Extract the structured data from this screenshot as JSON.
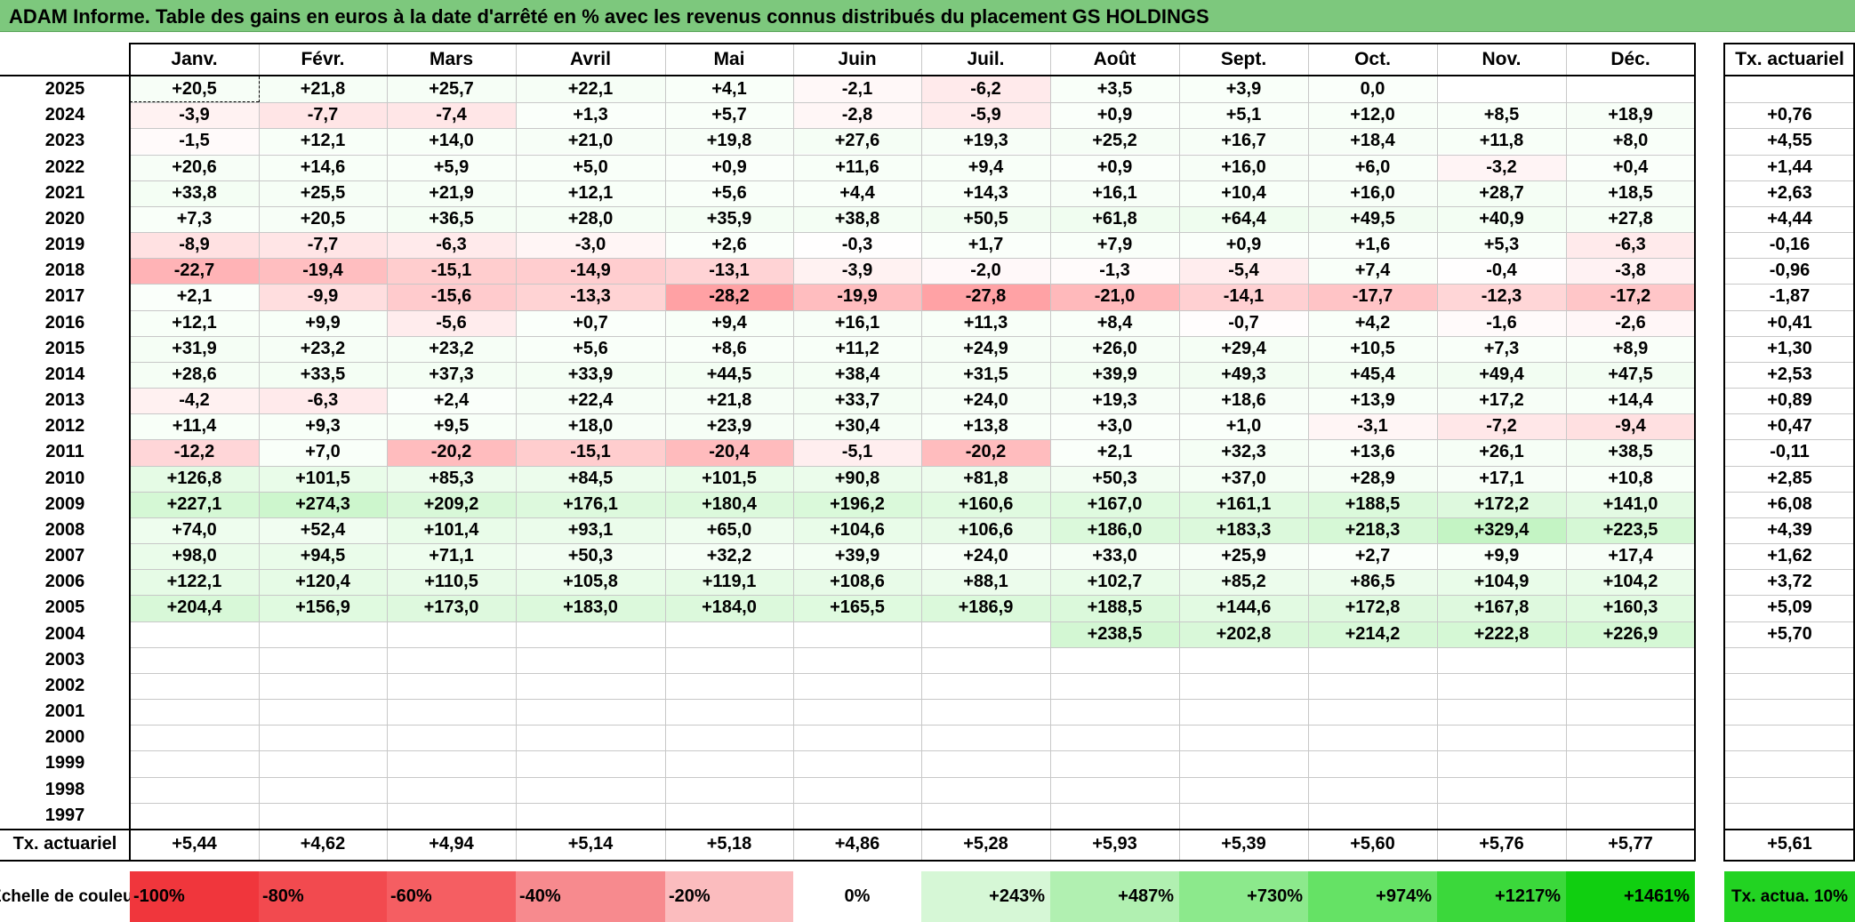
{
  "title": "ADAM Informe. Table des gains en euros à la date d'arrêté en % avec les revenus connus distribués du placement GS HOLDINGS",
  "chart_data": {
    "type": "table",
    "columns": [
      "Janv.",
      "Févr.",
      "Mars",
      "Avril",
      "Mai",
      "Juin",
      "Juil.",
      "Août",
      "Sept.",
      "Oct.",
      "Nov.",
      "Déc."
    ],
    "rate_header": "Tx. actuariel",
    "rows": [
      {
        "year": "2025",
        "values": [
          "+20,5",
          "+21,8",
          "+25,7",
          "+22,1",
          "+4,1",
          "-2,1",
          "-6,2",
          "+3,5",
          "+3,9",
          "0,0",
          "",
          ""
        ],
        "rate": ""
      },
      {
        "year": "2024",
        "values": [
          "-3,9",
          "-7,7",
          "-7,4",
          "+1,3",
          "+5,7",
          "-2,8",
          "-5,9",
          "+0,9",
          "+5,1",
          "+12,0",
          "+8,5",
          "+18,9"
        ],
        "rate": "+0,76"
      },
      {
        "year": "2023",
        "values": [
          "-1,5",
          "+12,1",
          "+14,0",
          "+21,0",
          "+19,8",
          "+27,6",
          "+19,3",
          "+25,2",
          "+16,7",
          "+18,4",
          "+11,8",
          "+8,0"
        ],
        "rate": "+4,55"
      },
      {
        "year": "2022",
        "values": [
          "+20,6",
          "+14,6",
          "+5,9",
          "+5,0",
          "+0,9",
          "+11,6",
          "+9,4",
          "+0,9",
          "+16,0",
          "+6,0",
          "-3,2",
          "+0,4"
        ],
        "rate": "+1,44"
      },
      {
        "year": "2021",
        "values": [
          "+33,8",
          "+25,5",
          "+21,9",
          "+12,1",
          "+5,6",
          "+4,4",
          "+14,3",
          "+16,1",
          "+10,4",
          "+16,0",
          "+28,7",
          "+18,5"
        ],
        "rate": "+2,63"
      },
      {
        "year": "2020",
        "values": [
          "+7,3",
          "+20,5",
          "+36,5",
          "+28,0",
          "+35,9",
          "+38,8",
          "+50,5",
          "+61,8",
          "+64,4",
          "+49,5",
          "+40,9",
          "+27,8"
        ],
        "rate": "+4,44"
      },
      {
        "year": "2019",
        "values": [
          "-8,9",
          "-7,7",
          "-6,3",
          "-3,0",
          "+2,6",
          "-0,3",
          "+1,7",
          "+7,9",
          "+0,9",
          "+1,6",
          "+5,3",
          "-6,3"
        ],
        "rate": "-0,16"
      },
      {
        "year": "2018",
        "values": [
          "-22,7",
          "-19,4",
          "-15,1",
          "-14,9",
          "-13,1",
          "-3,9",
          "-2,0",
          "-1,3",
          "-5,4",
          "+7,4",
          "-0,4",
          "-3,8"
        ],
        "rate": "-0,96"
      },
      {
        "year": "2017",
        "values": [
          "+2,1",
          "-9,9",
          "-15,6",
          "-13,3",
          "-28,2",
          "-19,9",
          "-27,8",
          "-21,0",
          "-14,1",
          "-17,7",
          "-12,3",
          "-17,2"
        ],
        "rate": "-1,87"
      },
      {
        "year": "2016",
        "values": [
          "+12,1",
          "+9,9",
          "-5,6",
          "+0,7",
          "+9,4",
          "+16,1",
          "+11,3",
          "+8,4",
          "-0,7",
          "+4,2",
          "-1,6",
          "-2,6"
        ],
        "rate": "+0,41"
      },
      {
        "year": "2015",
        "values": [
          "+31,9",
          "+23,2",
          "+23,2",
          "+5,6",
          "+8,6",
          "+11,2",
          "+24,9",
          "+26,0",
          "+29,4",
          "+10,5",
          "+7,3",
          "+8,9"
        ],
        "rate": "+1,30"
      },
      {
        "year": "2014",
        "values": [
          "+28,6",
          "+33,5",
          "+37,3",
          "+33,9",
          "+44,5",
          "+38,4",
          "+31,5",
          "+39,9",
          "+49,3",
          "+45,4",
          "+49,4",
          "+47,5"
        ],
        "rate": "+2,53"
      },
      {
        "year": "2013",
        "values": [
          "-4,2",
          "-6,3",
          "+2,4",
          "+22,4",
          "+21,8",
          "+33,7",
          "+24,0",
          "+19,3",
          "+18,6",
          "+13,9",
          "+17,2",
          "+14,4"
        ],
        "rate": "+0,89"
      },
      {
        "year": "2012",
        "values": [
          "+11,4",
          "+9,3",
          "+9,5",
          "+18,0",
          "+23,9",
          "+30,4",
          "+13,8",
          "+3,0",
          "+1,0",
          "-3,1",
          "-7,2",
          "-9,4"
        ],
        "rate": "+0,47"
      },
      {
        "year": "2011",
        "values": [
          "-12,2",
          "+7,0",
          "-20,2",
          "-15,1",
          "-20,4",
          "-5,1",
          "-20,2",
          "+2,1",
          "+32,3",
          "+13,6",
          "+26,1",
          "+38,5"
        ],
        "rate": "-0,11"
      },
      {
        "year": "2010",
        "values": [
          "+126,8",
          "+101,5",
          "+85,3",
          "+84,5",
          "+101,5",
          "+90,8",
          "+81,8",
          "+50,3",
          "+37,0",
          "+28,9",
          "+17,1",
          "+10,8"
        ],
        "rate": "+2,85"
      },
      {
        "year": "2009",
        "values": [
          "+227,1",
          "+274,3",
          "+209,2",
          "+176,1",
          "+180,4",
          "+196,2",
          "+160,6",
          "+167,0",
          "+161,1",
          "+188,5",
          "+172,2",
          "+141,0"
        ],
        "rate": "+6,08"
      },
      {
        "year": "2008",
        "values": [
          "+74,0",
          "+52,4",
          "+101,4",
          "+93,1",
          "+65,0",
          "+104,6",
          "+106,6",
          "+186,0",
          "+183,3",
          "+218,3",
          "+329,4",
          "+223,5"
        ],
        "rate": "+4,39"
      },
      {
        "year": "2007",
        "values": [
          "+98,0",
          "+94,5",
          "+71,1",
          "+50,3",
          "+32,2",
          "+39,9",
          "+24,0",
          "+33,0",
          "+25,9",
          "+2,7",
          "+9,9",
          "+17,4"
        ],
        "rate": "+1,62"
      },
      {
        "year": "2006",
        "values": [
          "+122,1",
          "+120,4",
          "+110,5",
          "+105,8",
          "+119,1",
          "+108,6",
          "+88,1",
          "+102,7",
          "+85,2",
          "+86,5",
          "+104,9",
          "+104,2"
        ],
        "rate": "+3,72"
      },
      {
        "year": "2005",
        "values": [
          "+204,4",
          "+156,9",
          "+173,0",
          "+183,0",
          "+184,0",
          "+165,5",
          "+186,9",
          "+188,5",
          "+144,6",
          "+172,8",
          "+167,8",
          "+160,3"
        ],
        "rate": "+5,09"
      },
      {
        "year": "2004",
        "values": [
          "",
          "",
          "",
          "",
          "",
          "",
          "",
          "+238,5",
          "+202,8",
          "+214,2",
          "+222,8",
          "+226,9"
        ],
        "rate": "+5,70"
      },
      {
        "year": "2003",
        "values": [
          "",
          "",
          "",
          "",
          "",
          "",
          "",
          "",
          "",
          "",
          "",
          ""
        ],
        "rate": ""
      },
      {
        "year": "2002",
        "values": [
          "",
          "",
          "",
          "",
          "",
          "",
          "",
          "",
          "",
          "",
          "",
          ""
        ],
        "rate": ""
      },
      {
        "year": "2001",
        "values": [
          "",
          "",
          "",
          "",
          "",
          "",
          "",
          "",
          "",
          "",
          "",
          ""
        ],
        "rate": ""
      },
      {
        "year": "2000",
        "values": [
          "",
          "",
          "",
          "",
          "",
          "",
          "",
          "",
          "",
          "",
          "",
          ""
        ],
        "rate": ""
      },
      {
        "year": "1999",
        "values": [
          "",
          "",
          "",
          "",
          "",
          "",
          "",
          "",
          "",
          "",
          "",
          ""
        ],
        "rate": ""
      },
      {
        "year": "1998",
        "values": [
          "",
          "",
          "",
          "",
          "",
          "",
          "",
          "",
          "",
          "",
          "",
          ""
        ],
        "rate": ""
      },
      {
        "year": "1997",
        "values": [
          "",
          "",
          "",
          "",
          "",
          "",
          "",
          "",
          "",
          "",
          "",
          ""
        ],
        "rate": ""
      }
    ],
    "footer": {
      "label": "Tx. actuariel",
      "values": [
        "+5,44",
        "+4,62",
        "+4,94",
        "+5,14",
        "+5,18",
        "+4,86",
        "+5,28",
        "+5,93",
        "+5,39",
        "+5,60",
        "+5,76",
        "+5,77"
      ],
      "rate": "+5,61"
    },
    "scale": {
      "label": "Echelle de couleur",
      "items": [
        {
          "text": "-100%",
          "color": "#f0363c"
        },
        {
          "text": "-80%",
          "color": "#f24a4f"
        },
        {
          "text": "-60%",
          "color": "#f55e62"
        },
        {
          "text": "-40%",
          "color": "#f78a8e"
        },
        {
          "text": "-20%",
          "color": "#fbbcbe"
        },
        {
          "text": "0%",
          "color": "#ffffff"
        },
        {
          "text": "+243%",
          "color": "#d6f7d6"
        },
        {
          "text": "+487%",
          "color": "#b1f0b1"
        },
        {
          "text": "+730%",
          "color": "#8ce98c"
        },
        {
          "text": "+974%",
          "color": "#65e265"
        },
        {
          "text": "+1217%",
          "color": "#3bd83b"
        },
        {
          "text": "+1461%",
          "color": "#10cf10"
        }
      ],
      "rate_label": "Tx. actua. 10%",
      "rate_color": "#22d322"
    }
  }
}
